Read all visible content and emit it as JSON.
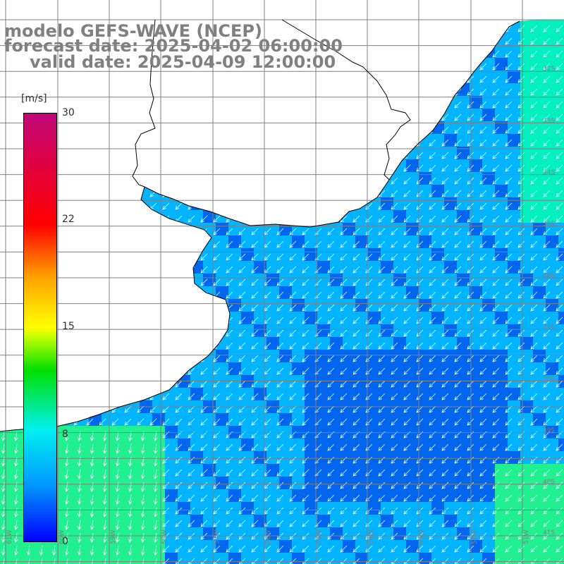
{
  "title": {
    "line1": "modelo GEFS-WAVE (NCEP)",
    "line2": "forecast date: 2025-04-02 06:00:00",
    "line3": "valid date: 2025-04-09 12:00:00"
  },
  "legend": {
    "unit": "[m/s]",
    "ticks": [
      "30",
      "22",
      "15",
      "8",
      "0"
    ]
  },
  "grid": {
    "lat_labels": [
      "32S",
      "33S",
      "34S",
      "35S",
      "36S",
      "37S",
      "38S",
      "39S",
      "40S",
      "41S"
    ],
    "lon_labels": [
      "61W",
      "60W",
      "59W",
      "58W",
      "57W",
      "56W",
      "55W",
      "54W",
      "53W",
      "52W",
      "51W"
    ]
  },
  "colors": {
    "land": "#ffffff",
    "coast": "#000000",
    "grid": "#808080",
    "arrows": "#ffffff",
    "field_low": "#0066ee",
    "field_mid": "#00b4ff",
    "field_high": "#00f0c0",
    "field_green": "#20f090"
  }
}
